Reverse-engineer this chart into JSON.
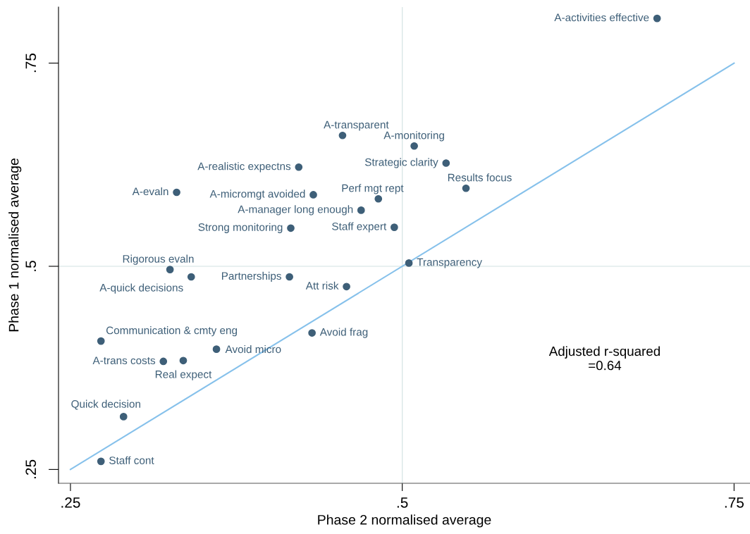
{
  "chart_data": {
    "type": "scatter",
    "xlabel": "Phase 2 normalised average",
    "ylabel": "Phase 1 normalised average",
    "xlim": [
      0.241,
      0.762
    ],
    "ylim": [
      0.233,
      0.819
    ],
    "xticks": [
      {
        "value": 0.25,
        "label": ".25"
      },
      {
        "value": 0.5,
        "label": ".5"
      },
      {
        "value": 0.75,
        "label": ".75"
      }
    ],
    "yticks": [
      {
        "value": 0.25,
        "label": ".25"
      },
      {
        "value": 0.5,
        "label": ".5"
      },
      {
        "value": 0.75,
        "label": ".75"
      }
    ],
    "grid": false,
    "legend": false,
    "series": [
      {
        "color": "#3e5f78",
        "marker": "circle",
        "x": [
          0.692,
          0.455,
          0.509,
          0.533,
          0.422,
          0.548,
          0.33,
          0.433,
          0.482,
          0.469,
          0.416,
          0.494,
          0.325,
          0.341,
          0.415,
          0.505,
          0.458,
          0.432,
          0.273,
          0.36,
          0.32,
          0.335,
          0.29,
          0.273
        ],
        "values": [
          0.805,
          0.661,
          0.648,
          0.627,
          0.622,
          0.596,
          0.591,
          0.588,
          0.583,
          0.569,
          0.547,
          0.548,
          0.496,
          0.487,
          0.487,
          0.504,
          0.475,
          0.418,
          0.408,
          0.398,
          0.383,
          0.384,
          0.315,
          0.26
        ]
      },
      {
        "type": "line",
        "marker": "none",
        "color": "#86c1eb",
        "x": [
          0.25,
          0.75
        ],
        "values": [
          0.25,
          0.75
        ]
      }
    ],
    "ref_lines": [
      {
        "axis": "x",
        "value": 0.5,
        "color": "#d9e6e6"
      },
      {
        "axis": "y",
        "value": 0.5,
        "color": "#e1ebeb"
      }
    ],
    "annotations": [
      {
        "text": "A-activities effective",
        "x": 0.692,
        "y": 0.805
      },
      {
        "text": "A-transparent",
        "x": 0.455,
        "y": 0.661
      },
      {
        "text": "A-monitoring",
        "x": 0.509,
        "y": 0.648
      },
      {
        "text": "Strategic clarity",
        "x": 0.533,
        "y": 0.627
      },
      {
        "text": "A-realistic expectns",
        "x": 0.422,
        "y": 0.622
      },
      {
        "text": "Results focus",
        "x": 0.548,
        "y": 0.596
      },
      {
        "text": "A-evaln",
        "x": 0.33,
        "y": 0.591
      },
      {
        "text": "A-micromgt avoided",
        "x": 0.433,
        "y": 0.588
      },
      {
        "text": "Perf mgt rept",
        "x": 0.482,
        "y": 0.583
      },
      {
        "text": "A-manager long enough",
        "x": 0.469,
        "y": 0.569
      },
      {
        "text": "Strong monitoring",
        "x": 0.416,
        "y": 0.547
      },
      {
        "text": "Staff expert",
        "x": 0.494,
        "y": 0.548
      },
      {
        "text": "Rigorous evaln",
        "x": 0.325,
        "y": 0.496
      },
      {
        "text": "A-quick decisions",
        "x": 0.341,
        "y": 0.487
      },
      {
        "text": "Partnerships",
        "x": 0.415,
        "y": 0.487
      },
      {
        "text": "Transparency",
        "x": 0.505,
        "y": 0.504
      },
      {
        "text": "Att risk",
        "x": 0.458,
        "y": 0.475
      },
      {
        "text": "Avoid frag",
        "x": 0.432,
        "y": 0.418
      },
      {
        "text": "Communication & cmty eng",
        "x": 0.273,
        "y": 0.408
      },
      {
        "text": "Avoid micro",
        "x": 0.36,
        "y": 0.398
      },
      {
        "text": "A-trans costs",
        "x": 0.32,
        "y": 0.383
      },
      {
        "text": "Real expect",
        "x": 0.335,
        "y": 0.384
      },
      {
        "text": "Quick decision",
        "x": 0.29,
        "y": 0.315
      },
      {
        "text": "Staff cont",
        "x": 0.273,
        "y": 0.26
      },
      "Adjusted r-squared\n=0.64"
    ]
  }
}
